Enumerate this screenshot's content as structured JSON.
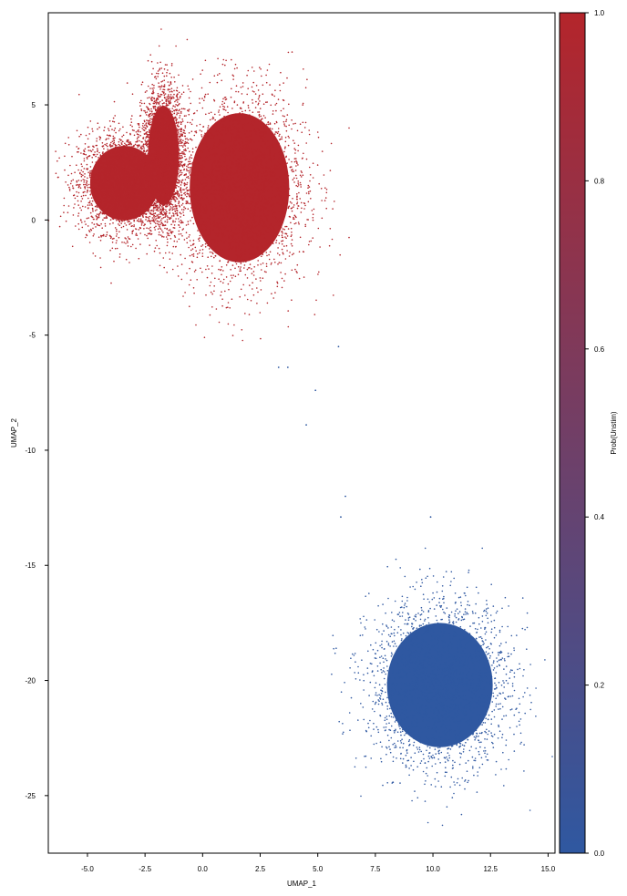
{
  "chart_data": {
    "type": "scatter",
    "title": "",
    "xlabel": "UMAP_1",
    "ylabel": "UMAP_2",
    "xlim": [
      -6.7,
      15.3
    ],
    "ylim": [
      -27.5,
      9.0
    ],
    "xticks": [
      -5.0,
      -2.5,
      0.0,
      2.5,
      5.0,
      7.5,
      10.0,
      12.5,
      15.0
    ],
    "xtick_labels": [
      "-5.0",
      "-2.5",
      "0.0",
      "2.5",
      "5.0",
      "7.5",
      "10.0",
      "12.5",
      "15.0"
    ],
    "yticks": [
      5,
      0,
      -5,
      -10,
      -15,
      -20,
      -25
    ],
    "ytick_labels": [
      "5",
      "0",
      "-5",
      "-10",
      "-15",
      "-20",
      "-25"
    ],
    "grid": false,
    "colorbar": {
      "label": "Prob(Unstim)",
      "range": [
        0.0,
        1.0
      ],
      "ticks": [
        0.0,
        0.2,
        0.4,
        0.6,
        0.8,
        1.0
      ],
      "tick_labels": [
        "0.0",
        "0.2",
        "0.4",
        "0.6",
        "0.8",
        "1.0"
      ],
      "color_low": "#2f58a1",
      "color_high": "#b4252b"
    },
    "clusters": [
      {
        "description": "upper-left lobe",
        "center": [
          -3.4,
          1.6
        ],
        "spread": [
          1.1,
          1.2
        ],
        "prob": 1.0
      },
      {
        "description": "upper diagonal streak",
        "center": [
          -1.7,
          2.8
        ],
        "spread": [
          0.5,
          1.6
        ],
        "prob": 1.0
      },
      {
        "description": "upper main mass",
        "center": [
          1.6,
          1.4
        ],
        "spread": [
          1.6,
          2.4
        ],
        "prob": 1.0
      },
      {
        "description": "lower cluster",
        "center": [
          10.3,
          -20.2
        ],
        "spread": [
          1.7,
          2.0
        ],
        "prob": 0.0
      }
    ],
    "stray_points": [
      {
        "x": 5.9,
        "y": -5.5,
        "prob": 0.0
      },
      {
        "x": 3.3,
        "y": -6.4,
        "prob": 0.0
      },
      {
        "x": 3.7,
        "y": -6.4,
        "prob": 0.0
      },
      {
        "x": 4.9,
        "y": -7.4,
        "prob": 0.0
      },
      {
        "x": 4.5,
        "y": -8.9,
        "prob": 0.0
      },
      {
        "x": 6.2,
        "y": -12.0,
        "prob": 0.0
      },
      {
        "x": 6.0,
        "y": -12.9,
        "prob": 0.0
      },
      {
        "x": 9.9,
        "y": -12.9,
        "prob": 0.0
      }
    ]
  }
}
